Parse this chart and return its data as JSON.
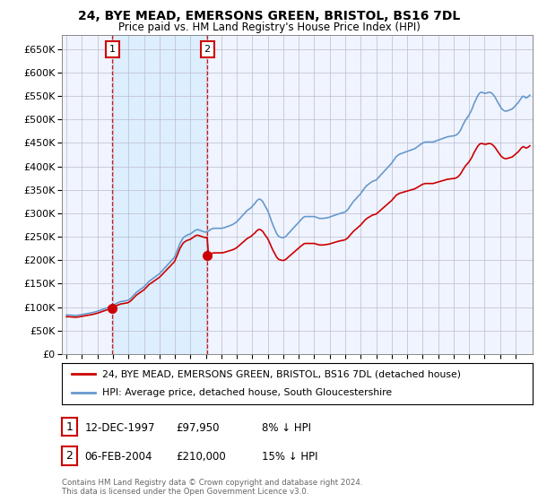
{
  "title": "24, BYE MEAD, EMERSONS GREEN, BRISTOL, BS16 7DL",
  "subtitle": "Price paid vs. HM Land Registry's House Price Index (HPI)",
  "legend_label_red": "24, BYE MEAD, EMERSONS GREEN, BRISTOL, BS16 7DL (detached house)",
  "legend_label_blue": "HPI: Average price, detached house, South Gloucestershire",
  "annotation1_date": "12-DEC-1997",
  "annotation1_price": "£97,950",
  "annotation1_hpi": "8% ↓ HPI",
  "annotation2_date": "06-FEB-2004",
  "annotation2_price": "£210,000",
  "annotation2_hpi": "15% ↓ HPI",
  "footer": "Contains HM Land Registry data © Crown copyright and database right 2024.\nThis data is licensed under the Open Government Licence v3.0.",
  "ylim": [
    0,
    680000
  ],
  "ytick_vals": [
    0,
    50000,
    100000,
    150000,
    200000,
    250000,
    300000,
    350000,
    400000,
    450000,
    500000,
    550000,
    600000,
    650000
  ],
  "ytick_labels": [
    "£0",
    "£50K",
    "£100K",
    "£150K",
    "£200K",
    "£250K",
    "£300K",
    "£350K",
    "£400K",
    "£450K",
    "£500K",
    "£550K",
    "£600K",
    "£650K"
  ],
  "xlim_left": 1994.7,
  "xlim_right": 2025.1,
  "background_color": "#f0f4ff",
  "grid_color": "#bbbbcc",
  "red_color": "#cc0000",
  "blue_color": "#6699cc",
  "shade_color": "#ddeeff",
  "point1_x": 1997.95,
  "point1_y": 97950,
  "point2_x": 2004.09,
  "point2_y": 210000,
  "hpi_data": [
    [
      1995.0,
      83000
    ],
    [
      1995.08,
      83200
    ],
    [
      1995.17,
      83100
    ],
    [
      1995.25,
      82800
    ],
    [
      1995.33,
      82500
    ],
    [
      1995.42,
      82300
    ],
    [
      1995.5,
      82100
    ],
    [
      1995.58,
      82000
    ],
    [
      1995.67,
      82200
    ],
    [
      1995.75,
      82500
    ],
    [
      1995.83,
      83000
    ],
    [
      1995.92,
      83500
    ],
    [
      1996.0,
      84000
    ],
    [
      1996.08,
      84500
    ],
    [
      1996.17,
      85000
    ],
    [
      1996.25,
      85500
    ],
    [
      1996.33,
      86000
    ],
    [
      1996.42,
      86500
    ],
    [
      1996.5,
      87000
    ],
    [
      1996.58,
      87500
    ],
    [
      1996.67,
      88000
    ],
    [
      1996.75,
      88800
    ],
    [
      1996.83,
      89500
    ],
    [
      1996.92,
      90200
    ],
    [
      1997.0,
      91000
    ],
    [
      1997.08,
      92000
    ],
    [
      1997.17,
      93000
    ],
    [
      1997.25,
      94000
    ],
    [
      1997.33,
      95000
    ],
    [
      1997.42,
      96000
    ],
    [
      1997.5,
      97000
    ],
    [
      1997.58,
      98000
    ],
    [
      1997.67,
      99000
    ],
    [
      1997.75,
      100000
    ],
    [
      1997.83,
      101000
    ],
    [
      1997.92,
      102000
    ],
    [
      1998.0,
      103500
    ],
    [
      1998.08,
      105000
    ],
    [
      1998.17,
      106500
    ],
    [
      1998.25,
      108000
    ],
    [
      1998.33,
      109500
    ],
    [
      1998.42,
      110500
    ],
    [
      1998.5,
      111500
    ],
    [
      1998.58,
      112000
    ],
    [
      1998.67,
      112500
    ],
    [
      1998.75,
      113000
    ],
    [
      1998.83,
      113500
    ],
    [
      1998.92,
      114000
    ],
    [
      1999.0,
      115000
    ],
    [
      1999.08,
      117000
    ],
    [
      1999.17,
      119000
    ],
    [
      1999.25,
      122000
    ],
    [
      1999.33,
      125000
    ],
    [
      1999.42,
      128000
    ],
    [
      1999.5,
      131000
    ],
    [
      1999.58,
      133000
    ],
    [
      1999.67,
      135000
    ],
    [
      1999.75,
      137000
    ],
    [
      1999.83,
      139000
    ],
    [
      1999.92,
      141000
    ],
    [
      2000.0,
      143000
    ],
    [
      2000.08,
      146000
    ],
    [
      2000.17,
      149000
    ],
    [
      2000.25,
      152000
    ],
    [
      2000.33,
      155000
    ],
    [
      2000.42,
      157000
    ],
    [
      2000.5,
      159000
    ],
    [
      2000.58,
      161000
    ],
    [
      2000.67,
      163000
    ],
    [
      2000.75,
      165000
    ],
    [
      2000.83,
      167000
    ],
    [
      2000.92,
      169000
    ],
    [
      2001.0,
      171000
    ],
    [
      2001.08,
      174000
    ],
    [
      2001.17,
      177000
    ],
    [
      2001.25,
      180000
    ],
    [
      2001.33,
      183000
    ],
    [
      2001.42,
      186000
    ],
    [
      2001.5,
      189000
    ],
    [
      2001.58,
      192000
    ],
    [
      2001.67,
      195000
    ],
    [
      2001.75,
      198000
    ],
    [
      2001.83,
      201000
    ],
    [
      2001.92,
      204000
    ],
    [
      2002.0,
      208000
    ],
    [
      2002.08,
      215000
    ],
    [
      2002.17,
      222000
    ],
    [
      2002.25,
      229000
    ],
    [
      2002.33,
      236000
    ],
    [
      2002.42,
      241000
    ],
    [
      2002.5,
      246000
    ],
    [
      2002.58,
      249000
    ],
    [
      2002.67,
      251000
    ],
    [
      2002.75,
      253000
    ],
    [
      2002.83,
      254000
    ],
    [
      2002.92,
      255000
    ],
    [
      2003.0,
      256000
    ],
    [
      2003.08,
      258000
    ],
    [
      2003.17,
      260000
    ],
    [
      2003.25,
      262000
    ],
    [
      2003.33,
      264000
    ],
    [
      2003.42,
      265000
    ],
    [
      2003.5,
      265000
    ],
    [
      2003.58,
      264000
    ],
    [
      2003.67,
      263000
    ],
    [
      2003.75,
      262000
    ],
    [
      2003.83,
      261000
    ],
    [
      2003.92,
      260000
    ],
    [
      2004.0,
      260000
    ],
    [
      2004.08,
      261000
    ],
    [
      2004.17,
      262000
    ],
    [
      2004.25,
      264000
    ],
    [
      2004.33,
      266000
    ],
    [
      2004.42,
      267000
    ],
    [
      2004.5,
      268000
    ],
    [
      2004.58,
      268000
    ],
    [
      2004.67,
      268000
    ],
    [
      2004.75,
      268000
    ],
    [
      2004.83,
      268000
    ],
    [
      2004.92,
      268000
    ],
    [
      2005.0,
      268000
    ],
    [
      2005.08,
      268500
    ],
    [
      2005.17,
      269000
    ],
    [
      2005.25,
      270000
    ],
    [
      2005.33,
      271000
    ],
    [
      2005.42,
      272000
    ],
    [
      2005.5,
      273000
    ],
    [
      2005.58,
      274000
    ],
    [
      2005.67,
      275000
    ],
    [
      2005.75,
      276500
    ],
    [
      2005.83,
      278000
    ],
    [
      2005.92,
      280000
    ],
    [
      2006.0,
      282000
    ],
    [
      2006.08,
      285000
    ],
    [
      2006.17,
      288000
    ],
    [
      2006.25,
      291000
    ],
    [
      2006.33,
      294000
    ],
    [
      2006.42,
      297000
    ],
    [
      2006.5,
      300000
    ],
    [
      2006.58,
      303000
    ],
    [
      2006.67,
      306000
    ],
    [
      2006.75,
      308000
    ],
    [
      2006.83,
      310000
    ],
    [
      2006.92,
      312000
    ],
    [
      2007.0,
      315000
    ],
    [
      2007.08,
      318000
    ],
    [
      2007.17,
      321000
    ],
    [
      2007.25,
      325000
    ],
    [
      2007.33,
      328000
    ],
    [
      2007.42,
      330000
    ],
    [
      2007.5,
      330000
    ],
    [
      2007.58,
      328000
    ],
    [
      2007.67,
      325000
    ],
    [
      2007.75,
      320000
    ],
    [
      2007.83,
      315000
    ],
    [
      2007.92,
      310000
    ],
    [
      2008.0,
      305000
    ],
    [
      2008.08,
      298000
    ],
    [
      2008.17,
      290000
    ],
    [
      2008.25,
      282000
    ],
    [
      2008.33,
      275000
    ],
    [
      2008.42,
      268000
    ],
    [
      2008.5,
      262000
    ],
    [
      2008.58,
      256000
    ],
    [
      2008.67,
      252000
    ],
    [
      2008.75,
      250000
    ],
    [
      2008.83,
      249000
    ],
    [
      2008.92,
      248000
    ],
    [
      2009.0,
      248000
    ],
    [
      2009.08,
      249000
    ],
    [
      2009.17,
      251000
    ],
    [
      2009.25,
      254000
    ],
    [
      2009.33,
      257000
    ],
    [
      2009.42,
      260000
    ],
    [
      2009.5,
      263000
    ],
    [
      2009.58,
      266000
    ],
    [
      2009.67,
      269000
    ],
    [
      2009.75,
      272000
    ],
    [
      2009.83,
      275000
    ],
    [
      2009.92,
      278000
    ],
    [
      2010.0,
      281000
    ],
    [
      2010.08,
      284000
    ],
    [
      2010.17,
      287000
    ],
    [
      2010.25,
      290000
    ],
    [
      2010.33,
      292000
    ],
    [
      2010.42,
      293000
    ],
    [
      2010.5,
      293000
    ],
    [
      2010.58,
      293000
    ],
    [
      2010.67,
      293000
    ],
    [
      2010.75,
      293000
    ],
    [
      2010.83,
      293000
    ],
    [
      2010.92,
      293000
    ],
    [
      2011.0,
      293000
    ],
    [
      2011.08,
      292000
    ],
    [
      2011.17,
      291000
    ],
    [
      2011.25,
      290000
    ],
    [
      2011.33,
      289000
    ],
    [
      2011.42,
      289000
    ],
    [
      2011.5,
      289000
    ],
    [
      2011.58,
      289000
    ],
    [
      2011.67,
      289500
    ],
    [
      2011.75,
      290000
    ],
    [
      2011.83,
      290500
    ],
    [
      2011.92,
      291000
    ],
    [
      2012.0,
      292000
    ],
    [
      2012.08,
      293000
    ],
    [
      2012.17,
      294000
    ],
    [
      2012.25,
      295000
    ],
    [
      2012.33,
      296000
    ],
    [
      2012.42,
      297000
    ],
    [
      2012.5,
      298000
    ],
    [
      2012.58,
      299000
    ],
    [
      2012.67,
      300000
    ],
    [
      2012.75,
      300500
    ],
    [
      2012.83,
      301000
    ],
    [
      2012.92,
      302000
    ],
    [
      2013.0,
      303000
    ],
    [
      2013.08,
      305000
    ],
    [
      2013.17,
      308000
    ],
    [
      2013.25,
      312000
    ],
    [
      2013.33,
      316000
    ],
    [
      2013.42,
      320000
    ],
    [
      2013.5,
      324000
    ],
    [
      2013.58,
      327000
    ],
    [
      2013.67,
      330000
    ],
    [
      2013.75,
      333000
    ],
    [
      2013.83,
      336000
    ],
    [
      2013.92,
      339000
    ],
    [
      2014.0,
      342000
    ],
    [
      2014.08,
      346000
    ],
    [
      2014.17,
      350000
    ],
    [
      2014.25,
      354000
    ],
    [
      2014.33,
      357000
    ],
    [
      2014.42,
      360000
    ],
    [
      2014.5,
      362000
    ],
    [
      2014.58,
      364000
    ],
    [
      2014.67,
      366000
    ],
    [
      2014.75,
      368000
    ],
    [
      2014.83,
      369000
    ],
    [
      2014.92,
      370000
    ],
    [
      2015.0,
      371000
    ],
    [
      2015.08,
      374000
    ],
    [
      2015.17,
      377000
    ],
    [
      2015.25,
      380000
    ],
    [
      2015.33,
      383000
    ],
    [
      2015.42,
      386000
    ],
    [
      2015.5,
      389000
    ],
    [
      2015.58,
      392000
    ],
    [
      2015.67,
      395000
    ],
    [
      2015.75,
      398000
    ],
    [
      2015.83,
      401000
    ],
    [
      2015.92,
      404000
    ],
    [
      2016.0,
      407000
    ],
    [
      2016.08,
      411000
    ],
    [
      2016.17,
      415000
    ],
    [
      2016.25,
      419000
    ],
    [
      2016.33,
      422000
    ],
    [
      2016.42,
      424000
    ],
    [
      2016.5,
      426000
    ],
    [
      2016.58,
      427000
    ],
    [
      2016.67,
      428000
    ],
    [
      2016.75,
      429000
    ],
    [
      2016.83,
      430000
    ],
    [
      2016.92,
      431000
    ],
    [
      2017.0,
      432000
    ],
    [
      2017.08,
      433000
    ],
    [
      2017.17,
      434000
    ],
    [
      2017.25,
      435000
    ],
    [
      2017.33,
      436000
    ],
    [
      2017.42,
      437000
    ],
    [
      2017.5,
      438000
    ],
    [
      2017.58,
      440000
    ],
    [
      2017.67,
      442000
    ],
    [
      2017.75,
      444000
    ],
    [
      2017.83,
      446000
    ],
    [
      2017.92,
      448000
    ],
    [
      2018.0,
      450000
    ],
    [
      2018.08,
      451000
    ],
    [
      2018.17,
      452000
    ],
    [
      2018.25,
      452000
    ],
    [
      2018.33,
      452000
    ],
    [
      2018.42,
      452000
    ],
    [
      2018.5,
      452000
    ],
    [
      2018.58,
      452000
    ],
    [
      2018.67,
      452000
    ],
    [
      2018.75,
      453000
    ],
    [
      2018.83,
      454000
    ],
    [
      2018.92,
      455000
    ],
    [
      2019.0,
      456000
    ],
    [
      2019.08,
      457000
    ],
    [
      2019.17,
      458000
    ],
    [
      2019.25,
      459000
    ],
    [
      2019.33,
      460000
    ],
    [
      2019.42,
      461000
    ],
    [
      2019.5,
      462000
    ],
    [
      2019.58,
      463000
    ],
    [
      2019.67,
      463500
    ],
    [
      2019.75,
      464000
    ],
    [
      2019.83,
      464500
    ],
    [
      2019.92,
      465000
    ],
    [
      2020.0,
      465000
    ],
    [
      2020.08,
      466000
    ],
    [
      2020.17,
      467000
    ],
    [
      2020.25,
      469000
    ],
    [
      2020.33,
      472000
    ],
    [
      2020.42,
      476000
    ],
    [
      2020.5,
      481000
    ],
    [
      2020.58,
      487000
    ],
    [
      2020.67,
      493000
    ],
    [
      2020.75,
      498000
    ],
    [
      2020.83,
      502000
    ],
    [
      2020.92,
      506000
    ],
    [
      2021.0,
      510000
    ],
    [
      2021.08,
      515000
    ],
    [
      2021.17,
      521000
    ],
    [
      2021.25,
      528000
    ],
    [
      2021.33,
      535000
    ],
    [
      2021.42,
      541000
    ],
    [
      2021.5,
      547000
    ],
    [
      2021.58,
      552000
    ],
    [
      2021.67,
      556000
    ],
    [
      2021.75,
      558000
    ],
    [
      2021.83,
      558000
    ],
    [
      2021.92,
      557000
    ],
    [
      2022.0,
      556000
    ],
    [
      2022.08,
      556000
    ],
    [
      2022.17,
      557000
    ],
    [
      2022.25,
      558000
    ],
    [
      2022.33,
      558000
    ],
    [
      2022.42,
      557000
    ],
    [
      2022.5,
      555000
    ],
    [
      2022.58,
      552000
    ],
    [
      2022.67,
      548000
    ],
    [
      2022.75,
      543000
    ],
    [
      2022.83,
      538000
    ],
    [
      2022.92,
      533000
    ],
    [
      2023.0,
      528000
    ],
    [
      2023.08,
      524000
    ],
    [
      2023.17,
      521000
    ],
    [
      2023.25,
      519000
    ],
    [
      2023.33,
      518000
    ],
    [
      2023.42,
      518000
    ],
    [
      2023.5,
      519000
    ],
    [
      2023.58,
      520000
    ],
    [
      2023.67,
      521000
    ],
    [
      2023.75,
      522000
    ],
    [
      2023.83,
      524000
    ],
    [
      2023.92,
      527000
    ],
    [
      2024.0,
      530000
    ],
    [
      2024.08,
      533000
    ],
    [
      2024.17,
      536000
    ],
    [
      2024.25,
      540000
    ],
    [
      2024.33,
      544000
    ],
    [
      2024.42,
      548000
    ],
    [
      2024.5,
      550000
    ],
    [
      2024.58,
      548000
    ],
    [
      2024.67,
      546000
    ],
    [
      2024.75,
      547000
    ],
    [
      2024.83,
      549000
    ],
    [
      2024.92,
      552000
    ]
  ]
}
